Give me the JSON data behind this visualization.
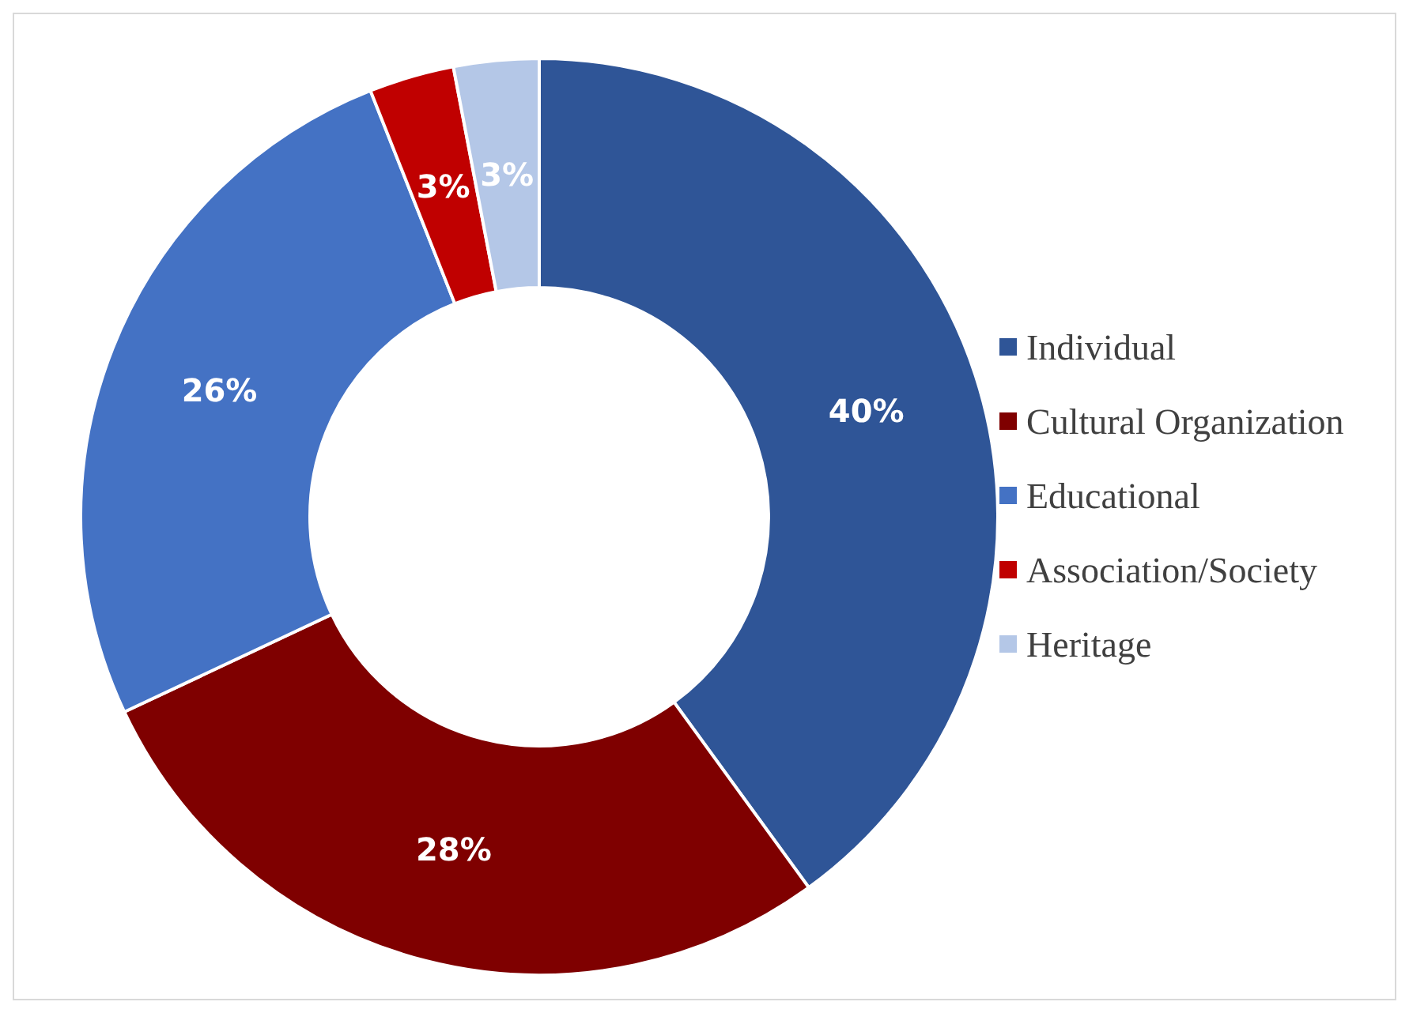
{
  "chart_data": {
    "type": "donut",
    "categories": [
      "Individual",
      "Cultural Organization",
      "Educational",
      "Association/Society",
      "Heritage"
    ],
    "values": [
      40,
      28,
      26,
      3,
      3
    ],
    "colors": [
      "#2f5597",
      "#7f0000",
      "#4472c4",
      "#c00000",
      "#b4c7e7"
    ],
    "value_labels": [
      "40%",
      "28%",
      "26%",
      "3%",
      "3%"
    ],
    "legend": "right"
  }
}
